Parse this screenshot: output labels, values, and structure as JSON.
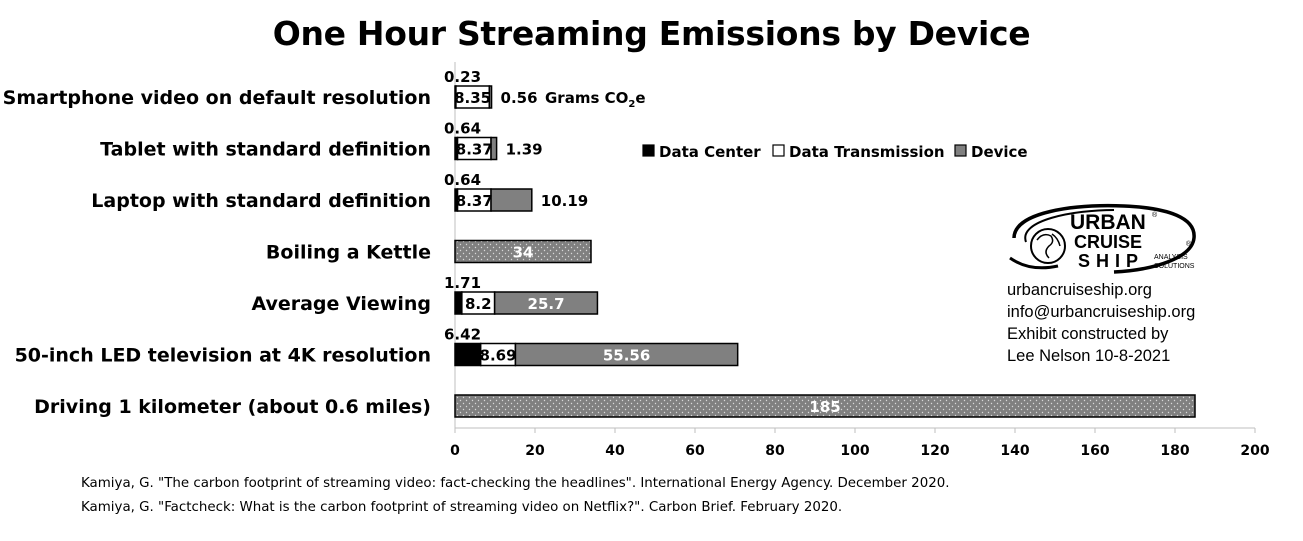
{
  "chart_data": {
    "type": "bar",
    "orientation": "horizontal",
    "stacked": true,
    "title": "One Hour Streaming Emissions by Device",
    "units_label": "Grams CO",
    "units_sub": "2",
    "units_suffix": "e",
    "categories": [
      "Smartphone video on default resolution",
      "Tablet with standard definition",
      "Laptop with standard definition",
      "Boiling a Kettle",
      "Average Viewing",
      "50-inch LED television at 4K resolution",
      "Driving 1 kilometer (about 0.6 miles)"
    ],
    "series": [
      {
        "name": "Data Center",
        "values": [
          0.23,
          0.64,
          0.64,
          null,
          1.71,
          6.42,
          null
        ],
        "labels": [
          "0.23",
          "0.64",
          "0.64",
          null,
          "1.71",
          "6.42",
          null
        ]
      },
      {
        "name": "Data Transmission",
        "values": [
          8.35,
          8.37,
          8.37,
          null,
          8.2,
          8.69,
          null
        ],
        "labels": [
          "8.35",
          "8.37",
          "8.37",
          null,
          "8.2",
          "8.69",
          null
        ]
      },
      {
        "name": "Device",
        "values": [
          0.56,
          1.39,
          10.19,
          null,
          25.7,
          55.56,
          null
        ],
        "labels": [
          "0.56",
          "1.39",
          "10.19",
          null,
          "25.7",
          "55.56",
          null
        ]
      }
    ],
    "reference_values": [
      null,
      null,
      null,
      34,
      null,
      null,
      185
    ],
    "reference_labels": [
      null,
      null,
      null,
      "34",
      null,
      null,
      "185"
    ],
    "x_ticks": [
      "0",
      "20",
      "40",
      "60",
      "80",
      "100",
      "120",
      "140",
      "160",
      "180",
      "200"
    ],
    "xlim": [
      0,
      200
    ],
    "legend_position": "right",
    "colors": {
      "data_center": "#000000",
      "data_transmission": "#ffffff",
      "device": "#808080",
      "reference": "#808080"
    }
  },
  "logo": {
    "line1": "URBAN",
    "line2": "CRUISE",
    "line3": "SHIP",
    "sub1": "ANALYSIS",
    "sub2": "SOLUTIONS"
  },
  "contact": {
    "website": "urbancruiseship.org",
    "email": "info@urbancruiseship.org",
    "line3": "Exhibit constructed by",
    "line4": "Lee Nelson 10-8-2021"
  },
  "sources": [
    "Kamiya, G. \"The carbon footprint of streaming video: fact-checking the headlines\". International Energy Agency. December 2020.",
    "Kamiya, G. \"Factcheck: What is the carbon footprint of streaming video on Netflix?\". Carbon Brief. February 2020."
  ]
}
